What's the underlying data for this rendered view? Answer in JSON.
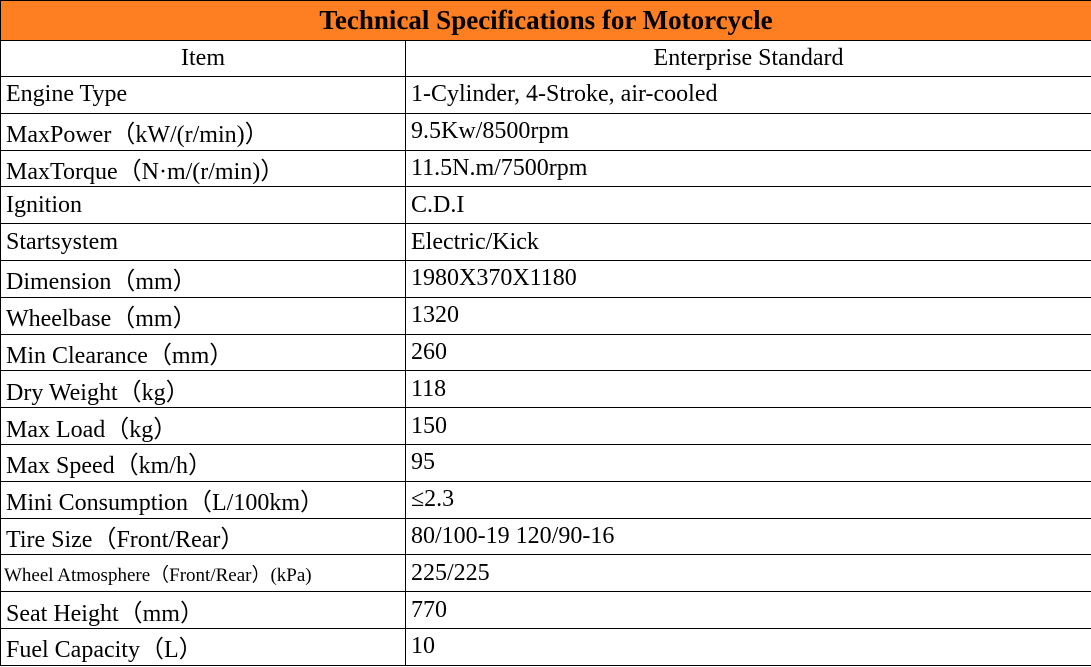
{
  "header": {
    "title": "Technical Specifications for Motorcycle"
  },
  "table": {
    "columns": [
      "Item",
      "Enterprise Standard"
    ],
    "rows": [
      [
        "Engine Type",
        "1-Cylinder, 4-Stroke, air-cooled"
      ],
      [
        "MaxPower（kW/(r/min)）",
        "9.5Kw/8500rpm"
      ],
      [
        "MaxTorque（N·m/(r/min)）",
        "11.5N.m/7500rpm"
      ],
      [
        "Ignition",
        "C.D.I"
      ],
      [
        "Startsystem",
        "Electric/Kick"
      ],
      [
        "Dimension（mm）",
        "1980X370X1180"
      ],
      [
        "Wheelbase（mm）",
        "1320"
      ],
      [
        "Min Clearance（mm）",
        "260"
      ],
      [
        "Dry Weight（kg）",
        "118"
      ],
      [
        "Max Load（kg）",
        "150"
      ],
      [
        "Max Speed（km/h）",
        "95"
      ],
      [
        "Mini Consumption（L/100km）",
        "≤2.3"
      ],
      [
        "Tire Size（Front/Rear）",
        "80/100-19 120/90-16"
      ],
      [
        "Wheel Atmosphere（Front/Rear）(kPa)",
        "225/225"
      ],
      [
        "Seat Height（mm）",
        "770"
      ],
      [
        "Fuel Capacity（L）",
        "10"
      ]
    ]
  }
}
